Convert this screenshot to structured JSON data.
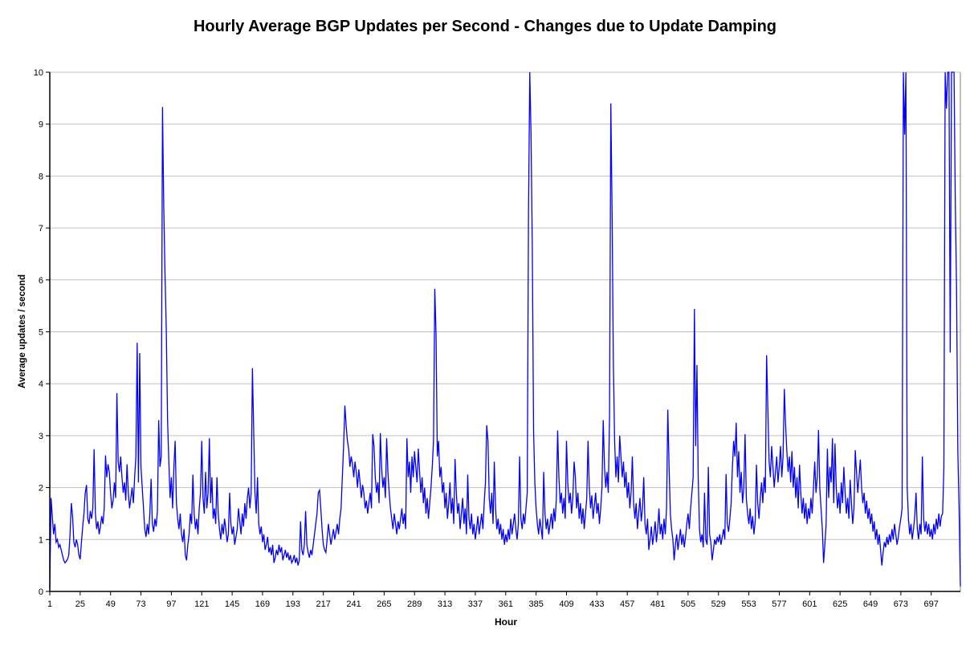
{
  "chart_data": {
    "type": "line",
    "title": "Hourly Average BGP Updates per Second - Changes due to Update Damping",
    "xlabel": "Hour",
    "ylabel": "Average updates / second",
    "xlim": [
      1,
      720
    ],
    "ylim": [
      0,
      10
    ],
    "x_ticks": [
      1,
      25,
      49,
      73,
      97,
      121,
      145,
      169,
      193,
      217,
      241,
      265,
      289,
      313,
      337,
      361,
      385,
      409,
      433,
      457,
      481,
      505,
      529,
      553,
      577,
      601,
      625,
      649,
      673,
      697
    ],
    "y_ticks": [
      0,
      1,
      2,
      3,
      4,
      5,
      6,
      7,
      8,
      9,
      10
    ],
    "grid": "horizontal",
    "legend_position": "none",
    "line_color": "#0000FF",
    "gridline_color": "#C0C0C0",
    "plot_border_color": "#808080",
    "axis_color": "#000000",
    "background_color": "#FFFFFF",
    "series": [
      {
        "name": "Hourly average BGP updates per second",
        "x_start": 1,
        "x_step": 1,
        "values": [
          0.05,
          1.8,
          1.45,
          1.1,
          1.3,
          0.95,
          1.0,
          0.85,
          0.9,
          0.8,
          0.7,
          0.6,
          0.55,
          0.58,
          0.62,
          0.7,
          1.1,
          1.7,
          1.45,
          0.95,
          0.85,
          1.0,
          0.9,
          0.7,
          0.62,
          0.95,
          1.25,
          1.5,
          1.9,
          2.05,
          1.4,
          1.3,
          1.55,
          1.4,
          1.6,
          2.74,
          1.5,
          1.2,
          1.35,
          1.1,
          1.25,
          1.45,
          1.3,
          1.6,
          2.62,
          2.2,
          2.45,
          2.3,
          1.9,
          1.6,
          1.75,
          2.1,
          1.8,
          3.82,
          2.5,
          2.3,
          2.6,
          2.2,
          1.9,
          2.1,
          1.75,
          2.45,
          1.9,
          1.6,
          1.8,
          2.0,
          1.7,
          2.2,
          2.6,
          4.79,
          2.1,
          4.59,
          2.4,
          2.0,
          1.6,
          1.2,
          1.05,
          1.3,
          1.1,
          1.5,
          2.17,
          1.3,
          1.15,
          1.4,
          1.25,
          1.55,
          3.3,
          2.4,
          2.6,
          9.33,
          7.4,
          6.1,
          5.03,
          3.3,
          2.5,
          1.8,
          2.2,
          1.6,
          2.4,
          2.9,
          1.7,
          1.4,
          1.2,
          1.5,
          1.1,
          0.95,
          1.2,
          0.7,
          0.6,
          0.9,
          1.1,
          1.5,
          1.3,
          2.25,
          1.5,
          1.2,
          1.4,
          1.1,
          1.6,
          1.9,
          2.9,
          1.8,
          1.5,
          2.3,
          1.6,
          1.9,
          2.95,
          1.7,
          2.2,
          1.4,
          1.6,
          1.3,
          2.2,
          1.5,
          1.2,
          1.0,
          1.3,
          1.1,
          1.4,
          1.2,
          0.95,
          1.1,
          1.9,
          1.3,
          1.1,
          1.25,
          0.9,
          1.05,
          1.2,
          1.6,
          1.35,
          1.1,
          1.5,
          1.25,
          1.7,
          1.4,
          1.8,
          2.0,
          1.6,
          1.9,
          4.3,
          3.1,
          1.9,
          1.5,
          2.2,
          1.3,
          1.1,
          1.25,
          0.95,
          1.1,
          0.8,
          0.9,
          1.05,
          0.75,
          0.85,
          0.7,
          0.9,
          0.55,
          0.65,
          0.8,
          0.7,
          0.9,
          0.75,
          0.85,
          0.6,
          0.7,
          0.8,
          0.65,
          0.75,
          0.6,
          0.7,
          0.55,
          0.6,
          0.7,
          0.55,
          0.65,
          0.5,
          0.6,
          1.35,
          0.8,
          0.7,
          0.9,
          1.55,
          0.9,
          0.75,
          0.65,
          0.8,
          0.7,
          0.9,
          1.1,
          1.3,
          1.5,
          1.9,
          1.95,
          1.6,
          1.2,
          0.9,
          0.8,
          0.75,
          1.0,
          1.3,
          1.1,
          0.9,
          1.05,
          1.2,
          1.0,
          1.15,
          1.3,
          1.1,
          1.4,
          1.6,
          2.2,
          2.8,
          3.58,
          3.2,
          2.9,
          2.75,
          2.4,
          2.6,
          2.45,
          2.2,
          2.5,
          2.3,
          2.0,
          2.35,
          2.1,
          1.8,
          2.05,
          1.9,
          1.6,
          1.75,
          1.5,
          1.7,
          1.9,
          1.6,
          3.03,
          2.8,
          2.2,
          1.9,
          2.1,
          1.7,
          3.05,
          2.4,
          2.0,
          2.2,
          1.8,
          2.95,
          2.3,
          1.9,
          1.6,
          1.4,
          1.2,
          1.5,
          1.3,
          1.1,
          1.35,
          1.2,
          1.4,
          1.6,
          1.3,
          1.5,
          1.2,
          2.95,
          2.2,
          2.5,
          1.9,
          2.6,
          2.2,
          2.7,
          2.4,
          2.1,
          2.75,
          2.3,
          1.9,
          2.2,
          1.7,
          2.0,
          1.5,
          1.8,
          1.4,
          1.7,
          2.0,
          2.4,
          2.9,
          5.83,
          4.95,
          2.6,
          2.9,
          2.2,
          2.4,
          1.9,
          2.1,
          1.6,
          1.9,
          1.4,
          1.7,
          2.1,
          1.5,
          1.8,
          1.3,
          2.55,
          1.9,
          1.5,
          1.7,
          1.2,
          1.5,
          1.8,
          1.3,
          1.6,
          1.1,
          2.25,
          1.4,
          1.2,
          1.5,
          1.1,
          1.3,
          1.0,
          1.2,
          1.45,
          1.1,
          1.3,
          1.5,
          1.2,
          1.7,
          2.1,
          3.2,
          2.9,
          1.8,
          1.5,
          1.9,
          1.3,
          2.5,
          1.6,
          1.2,
          1.4,
          1.1,
          1.3,
          1.0,
          1.2,
          0.9,
          1.1,
          0.95,
          1.2,
          1.0,
          1.4,
          1.1,
          1.3,
          1.5,
          1.2,
          1.0,
          1.3,
          2.6,
          1.4,
          1.2,
          1.5,
          1.3,
          1.6,
          1.9,
          7.3,
          10,
          8.8,
          6.6,
          3.1,
          2.1,
          1.6,
          1.3,
          1.1,
          1.4,
          1.2,
          1.0,
          2.3,
          1.5,
          1.2,
          1.4,
          1.1,
          1.3,
          1.5,
          1.2,
          1.6,
          1.35,
          1.8,
          3.1,
          2.2,
          1.7,
          1.9,
          1.5,
          1.8,
          1.4,
          2.9,
          2.1,
          1.7,
          1.9,
          1.5,
          1.8,
          2.5,
          2.2,
          1.6,
          1.9,
          1.4,
          1.7,
          1.3,
          1.6,
          1.2,
          1.5,
          1.8,
          2.9,
          2.0,
          1.6,
          1.85,
          1.4,
          1.65,
          1.9,
          1.5,
          1.7,
          1.3,
          1.6,
          2.0,
          3.3,
          2.4,
          2.0,
          2.3,
          1.9,
          3.4,
          9.4,
          7.3,
          4.4,
          2.9,
          2.2,
          2.6,
          2.1,
          3.0,
          2.6,
          2.2,
          2.5,
          2.0,
          2.3,
          1.8,
          2.1,
          1.6,
          1.9,
          2.6,
          1.7,
          1.4,
          1.7,
          1.2,
          1.5,
          1.8,
          1.35,
          1.6,
          2.2,
          1.3,
          1.1,
          1.4,
          0.8,
          1.0,
          1.25,
          0.9,
          1.1,
          1.35,
          0.95,
          1.2,
          1.6,
          1.1,
          1.3,
          1.0,
          1.4,
          1.1,
          1.6,
          3.5,
          2.4,
          1.5,
          1.2,
          1.0,
          0.6,
          0.9,
          1.1,
          0.8,
          1.0,
          1.2,
          0.9,
          1.1,
          0.85,
          1.05,
          1.3,
          1.5,
          1.2,
          1.6,
          1.9,
          2.2,
          5.44,
          2.8,
          4.36,
          2.2,
          1.2,
          0.95,
          1.1,
          0.85,
          1.9,
          1.0,
          0.9,
          2.4,
          1.1,
          0.95,
          0.6,
          0.8,
          1.0,
          0.9,
          1.05,
          0.95,
          1.1,
          0.9,
          1.05,
          1.2,
          1.0,
          2.26,
          1.3,
          1.15,
          1.4,
          1.7,
          2.4,
          2.9,
          2.6,
          3.25,
          2.2,
          2.7,
          1.9,
          2.3,
          1.7,
          2.0,
          3.03,
          1.8,
          1.5,
          1.3,
          1.6,
          1.2,
          1.45,
          1.1,
          1.35,
          2.44,
          1.7,
          1.4,
          1.8,
          2.1,
          1.7,
          2.2,
          1.9,
          4.55,
          3.5,
          2.5,
          2.2,
          2.8,
          2.4,
          2.0,
          2.3,
          2.6,
          2.1,
          2.4,
          2.8,
          2.2,
          2.6,
          3.9,
          3.2,
          2.7,
          2.3,
          2.6,
          2.1,
          2.7,
          2.0,
          2.4,
          1.8,
          2.2,
          1.6,
          2.44,
          1.9,
          1.5,
          1.8,
          1.4,
          1.7,
          1.3,
          1.6,
          1.4,
          1.8,
          1.5,
          2.0,
          2.5,
          1.9,
          2.2,
          3.11,
          2.0,
          1.6,
          1.2,
          0.55,
          0.9,
          1.3,
          2.75,
          1.8,
          2.4,
          2.1,
          2.95,
          1.7,
          2.85,
          2.0,
          1.6,
          1.9,
          1.5,
          2.1,
          1.7,
          2.4,
          1.9,
          1.5,
          1.8,
          1.4,
          2.15,
          1.7,
          1.3,
          1.6,
          2.72,
          2.3,
          1.9,
          2.2,
          2.54,
          2.0,
          1.7,
          1.9,
          1.5,
          1.75,
          1.4,
          1.6,
          1.3,
          1.5,
          1.15,
          1.35,
          1.0,
          1.2,
          0.9,
          1.1,
          0.8,
          0.5,
          0.75,
          0.95,
          0.85,
          1.05,
          0.9,
          1.1,
          0.95,
          1.2,
          1.0,
          1.3,
          1.1,
          0.9,
          1.05,
          1.25,
          1.4,
          1.6,
          10,
          8.8,
          10,
          2.0,
          1.4,
          1.1,
          1.3,
          1.0,
          1.2,
          1.45,
          1.9,
          1.2,
          1.0,
          1.3,
          1.1,
          2.6,
          1.4,
          1.15,
          1.35,
          1.1,
          1.3,
          1.05,
          1.2,
          1.0,
          1.3,
          1.1,
          1.4,
          1.2,
          1.5,
          1.25,
          1.45,
          1.5,
          2.4,
          10,
          9.3,
          10,
          10,
          4.6,
          10,
          10,
          10,
          7.5,
          5.8,
          2.7,
          1.6,
          0.1
        ]
      }
    ]
  }
}
